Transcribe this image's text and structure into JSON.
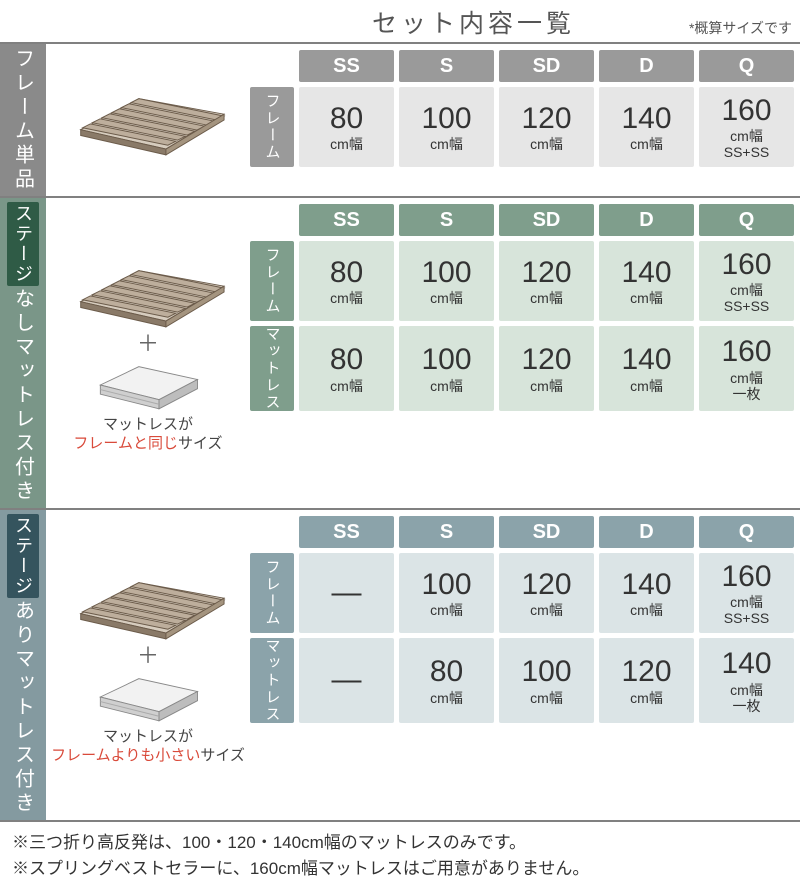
{
  "title": "セット内容一覧",
  "subtitle": "*概算サイズです",
  "sizes": [
    "SS",
    "S",
    "SD",
    "D",
    "Q"
  ],
  "rowLabels": {
    "frame": "フレーム",
    "mattress": "マットレス"
  },
  "sections": [
    {
      "id": "frame-only",
      "vlabel_pre": "",
      "vlabel_tag": "",
      "vlabel_post": "フレーム単品",
      "tag_bg": "",
      "tag_fg": "",
      "header_cls": "c1h",
      "body_cls": "c1b",
      "rowlabel_cls": "c1r",
      "vlabel_cls": "sec1-bg",
      "caption_parts": [],
      "show_mattress_img": false,
      "rows": [
        {
          "label_key": "frame",
          "cells": [
            {
              "num": "80",
              "unit": "cm幅",
              "extra": ""
            },
            {
              "num": "100",
              "unit": "cm幅",
              "extra": ""
            },
            {
              "num": "120",
              "unit": "cm幅",
              "extra": ""
            },
            {
              "num": "140",
              "unit": "cm幅",
              "extra": ""
            },
            {
              "num": "160",
              "unit": "cm幅",
              "extra": "SS+SS"
            }
          ]
        }
      ]
    },
    {
      "id": "stage-nashi",
      "vlabel_pre": "",
      "vlabel_tag": "ステージ",
      "vlabel_post": "マットレス付き",
      "tag_text_after": "なし",
      "tag_bg": "#2f5b46",
      "tag_fg": "#fff",
      "header_cls": "c2h",
      "body_cls": "c2b",
      "rowlabel_cls": "c2r",
      "vlabel_cls": "sec2-bg",
      "caption_parts": [
        "マットレスが",
        "フレームと",
        "同じ",
        "サイズ"
      ],
      "caption_hl_idx": [
        1,
        2
      ],
      "show_mattress_img": true,
      "rows": [
        {
          "label_key": "frame",
          "cells": [
            {
              "num": "80",
              "unit": "cm幅",
              "extra": ""
            },
            {
              "num": "100",
              "unit": "cm幅",
              "extra": ""
            },
            {
              "num": "120",
              "unit": "cm幅",
              "extra": ""
            },
            {
              "num": "140",
              "unit": "cm幅",
              "extra": ""
            },
            {
              "num": "160",
              "unit": "cm幅",
              "extra": "SS+SS"
            }
          ]
        },
        {
          "label_key": "mattress",
          "cells": [
            {
              "num": "80",
              "unit": "cm幅",
              "extra": ""
            },
            {
              "num": "100",
              "unit": "cm幅",
              "extra": ""
            },
            {
              "num": "120",
              "unit": "cm幅",
              "extra": ""
            },
            {
              "num": "140",
              "unit": "cm幅",
              "extra": ""
            },
            {
              "num": "160",
              "unit": "cm幅",
              "extra": "一枚"
            }
          ]
        }
      ]
    },
    {
      "id": "stage-ari",
      "vlabel_pre": "",
      "vlabel_tag": "ステージ",
      "vlabel_post": "マットレス付き",
      "tag_text_after": "あり",
      "tag_bg": "#35545e",
      "tag_fg": "#fff",
      "header_cls": "c3h",
      "body_cls": "c3b",
      "rowlabel_cls": "c3r",
      "vlabel_cls": "sec3-bg",
      "caption_parts": [
        "マットレスが",
        "フレームよりも",
        "小さい",
        "サイズ"
      ],
      "caption_hl_idx": [
        1,
        2
      ],
      "show_mattress_img": true,
      "rows": [
        {
          "label_key": "frame",
          "cells": [
            {
              "dash": true
            },
            {
              "num": "100",
              "unit": "cm幅",
              "extra": ""
            },
            {
              "num": "120",
              "unit": "cm幅",
              "extra": ""
            },
            {
              "num": "140",
              "unit": "cm幅",
              "extra": ""
            },
            {
              "num": "160",
              "unit": "cm幅",
              "extra": "SS+SS"
            }
          ]
        },
        {
          "label_key": "mattress",
          "cells": [
            {
              "dash": true
            },
            {
              "num": "80",
              "unit": "cm幅",
              "extra": ""
            },
            {
              "num": "100",
              "unit": "cm幅",
              "extra": ""
            },
            {
              "num": "120",
              "unit": "cm幅",
              "extra": ""
            },
            {
              "num": "140",
              "unit": "cm幅",
              "extra": "一枚"
            }
          ]
        }
      ]
    }
  ],
  "footnotes": [
    "※三つ折り高反発は、100・120・140cm幅のマットレスのみです。",
    "※スプリングベストセラーに、160cm幅マットレスはご用意がありません。"
  ]
}
